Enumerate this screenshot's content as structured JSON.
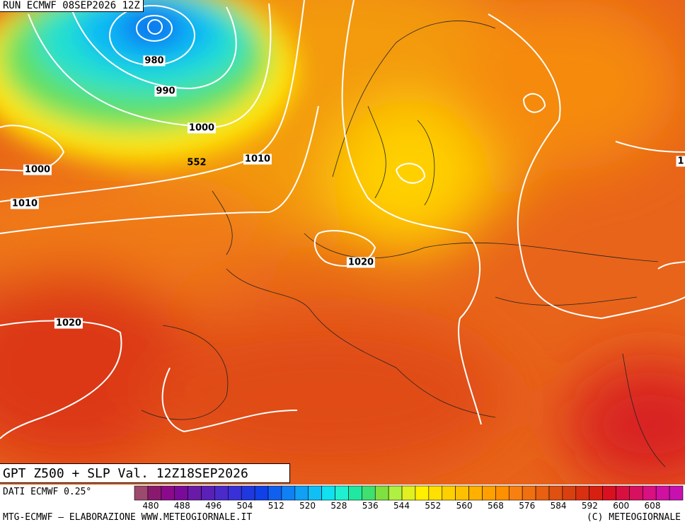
{
  "header": {
    "run": "RUN ECMWF 08SEP2026 12Z"
  },
  "map": {
    "labels": [
      "980",
      "990",
      "1000",
      "552",
      "1010",
      "1000",
      "1010",
      "1020",
      "1020",
      "1"
    ]
  },
  "footer": {
    "title": "GPT Z500 + SLP Val. 12Z18SEP2026",
    "data_source": "DATI ECMWF 0.25°",
    "credit": "MTG-ECMWF – ELABORAZIONE WWW.METEOGIORNALE.IT",
    "copyright": "(C) METEOGIORNALE"
  },
  "legend": {
    "colors": [
      "#9c4a6e",
      "#8a1a6e",
      "#8b0a8b",
      "#7a0a9a",
      "#6a1aa8",
      "#5a20b8",
      "#4a2ac8",
      "#3a30d8",
      "#2038e0",
      "#1040e8",
      "#1060f0",
      "#1080f5",
      "#10a0f5",
      "#10c0f5",
      "#10e0f0",
      "#20f0d0",
      "#20e8a0",
      "#40e070",
      "#80e040",
      "#b0f040",
      "#e0f020",
      "#fff000",
      "#ffe000",
      "#ffd000",
      "#ffc000",
      "#ffb000",
      "#ffa000",
      "#ff9000",
      "#f88010",
      "#f07010",
      "#e86010",
      "#e05010",
      "#d84010",
      "#d83010",
      "#d82010",
      "#d81020",
      "#d81040",
      "#d81060",
      "#d81080",
      "#d010a0",
      "#c810b0"
    ],
    "ticks": [
      480,
      488,
      496,
      504,
      512,
      520,
      528,
      536,
      544,
      552,
      560,
      568,
      576,
      584,
      592,
      600,
      608
    ]
  }
}
